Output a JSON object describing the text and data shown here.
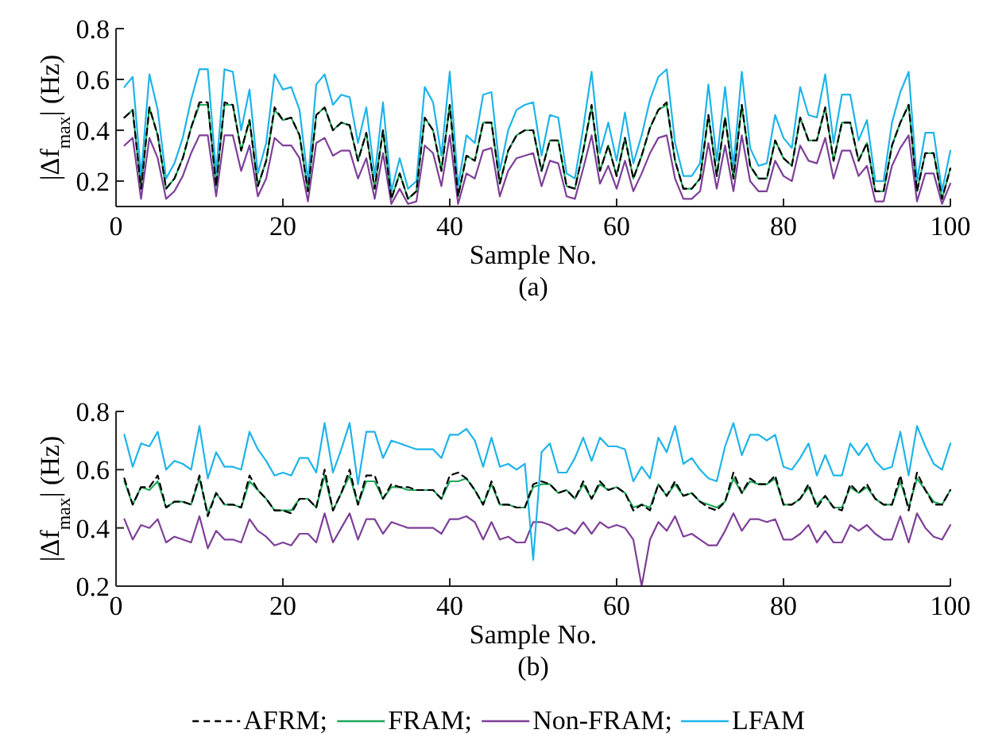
{
  "chart_data": [
    {
      "type": "line",
      "xlabel": "Sample No.",
      "ylabel": "|Δf$_{max}$| (Hz)",
      "annotations": [
        "(a)"
      ],
      "xlim": [
        0,
        100
      ],
      "xticks": [
        0,
        20,
        40,
        60,
        80,
        100
      ],
      "ylim": [
        0.1,
        0.8
      ],
      "yticks": [
        0.2,
        0.4,
        0.6,
        0.8
      ],
      "grid": false,
      "legend": false,
      "x": [
        1,
        2,
        3,
        4,
        5,
        6,
        7,
        8,
        9,
        10,
        11,
        12,
        13,
        14,
        15,
        16,
        17,
        18,
        19,
        20,
        21,
        22,
        23,
        24,
        25,
        26,
        27,
        28,
        29,
        30,
        31,
        32,
        33,
        34,
        35,
        36,
        37,
        38,
        39,
        40,
        41,
        42,
        43,
        44,
        45,
        46,
        47,
        48,
        49,
        50,
        51,
        52,
        53,
        54,
        55,
        56,
        57,
        58,
        59,
        60,
        61,
        62,
        63,
        64,
        65,
        66,
        67,
        68,
        69,
        70,
        71,
        72,
        73,
        74,
        75,
        76,
        77,
        78,
        79,
        80,
        81,
        82,
        83,
        84,
        85,
        86,
        87,
        88,
        89,
        90,
        91,
        92,
        93,
        94,
        95,
        96,
        97,
        98,
        99,
        100
      ],
      "series": [
        {
          "color": "#21a65a",
          "line_style": "solid",
          "values": [
            0.45,
            0.48,
            0.17,
            0.49,
            0.38,
            0.17,
            0.21,
            0.29,
            0.41,
            0.5,
            0.5,
            0.18,
            0.5,
            0.5,
            0.32,
            0.44,
            0.18,
            0.28,
            0.48,
            0.44,
            0.45,
            0.38,
            0.16,
            0.46,
            0.49,
            0.4,
            0.43,
            0.42,
            0.28,
            0.39,
            0.17,
            0.4,
            0.13,
            0.23,
            0.13,
            0.16,
            0.45,
            0.4,
            0.24,
            0.5,
            0.14,
            0.3,
            0.28,
            0.43,
            0.43,
            0.19,
            0.32,
            0.38,
            0.4,
            0.4,
            0.24,
            0.36,
            0.36,
            0.18,
            0.17,
            0.32,
            0.49,
            0.24,
            0.34,
            0.22,
            0.37,
            0.21,
            0.3,
            0.41,
            0.48,
            0.5,
            0.28,
            0.17,
            0.17,
            0.21,
            0.46,
            0.22,
            0.45,
            0.21,
            0.5,
            0.26,
            0.21,
            0.21,
            0.36,
            0.29,
            0.26,
            0.45,
            0.36,
            0.36,
            0.49,
            0.28,
            0.43,
            0.43,
            0.28,
            0.35,
            0.16,
            0.16,
            0.34,
            0.43,
            0.5,
            0.16,
            0.31,
            0.31,
            0.13,
            0.25
          ]
        },
        {
          "color": "#7e3f98",
          "line_style": "solid",
          "values": [
            0.34,
            0.37,
            0.13,
            0.37,
            0.29,
            0.13,
            0.16,
            0.22,
            0.31,
            0.38,
            0.38,
            0.14,
            0.38,
            0.38,
            0.24,
            0.34,
            0.14,
            0.21,
            0.37,
            0.34,
            0.34,
            0.29,
            0.12,
            0.35,
            0.37,
            0.3,
            0.32,
            0.32,
            0.21,
            0.29,
            0.13,
            0.31,
            0.11,
            0.17,
            0.11,
            0.12,
            0.34,
            0.31,
            0.18,
            0.38,
            0.11,
            0.23,
            0.21,
            0.32,
            0.33,
            0.14,
            0.24,
            0.29,
            0.3,
            0.31,
            0.18,
            0.28,
            0.27,
            0.14,
            0.13,
            0.25,
            0.38,
            0.19,
            0.26,
            0.17,
            0.28,
            0.16,
            0.23,
            0.31,
            0.37,
            0.38,
            0.21,
            0.13,
            0.13,
            0.16,
            0.35,
            0.17,
            0.34,
            0.16,
            0.38,
            0.2,
            0.16,
            0.16,
            0.28,
            0.22,
            0.2,
            0.34,
            0.28,
            0.27,
            0.37,
            0.21,
            0.32,
            0.32,
            0.22,
            0.26,
            0.12,
            0.12,
            0.26,
            0.33,
            0.38,
            0.12,
            0.23,
            0.23,
            0.11,
            0.19
          ]
        },
        {
          "color": "#1eb4ea",
          "line_style": "solid",
          "values": [
            0.57,
            0.61,
            0.22,
            0.62,
            0.48,
            0.21,
            0.27,
            0.37,
            0.52,
            0.64,
            0.64,
            0.23,
            0.64,
            0.63,
            0.4,
            0.56,
            0.23,
            0.35,
            0.62,
            0.56,
            0.57,
            0.48,
            0.2,
            0.58,
            0.62,
            0.5,
            0.54,
            0.53,
            0.35,
            0.49,
            0.22,
            0.51,
            0.16,
            0.29,
            0.17,
            0.2,
            0.57,
            0.51,
            0.3,
            0.63,
            0.18,
            0.38,
            0.35,
            0.54,
            0.55,
            0.24,
            0.4,
            0.48,
            0.5,
            0.51,
            0.3,
            0.46,
            0.45,
            0.23,
            0.21,
            0.41,
            0.63,
            0.31,
            0.43,
            0.28,
            0.47,
            0.27,
            0.38,
            0.52,
            0.61,
            0.64,
            0.35,
            0.22,
            0.22,
            0.27,
            0.58,
            0.28,
            0.57,
            0.26,
            0.63,
            0.33,
            0.26,
            0.27,
            0.46,
            0.37,
            0.33,
            0.57,
            0.46,
            0.45,
            0.62,
            0.35,
            0.54,
            0.54,
            0.36,
            0.44,
            0.2,
            0.2,
            0.43,
            0.55,
            0.63,
            0.2,
            0.39,
            0.39,
            0.16,
            0.32
          ]
        },
        {
          "color": "#000000",
          "line_style": "dashed",
          "values": [
            0.45,
            0.48,
            0.17,
            0.49,
            0.38,
            0.17,
            0.21,
            0.29,
            0.41,
            0.51,
            0.51,
            0.18,
            0.51,
            0.5,
            0.32,
            0.44,
            0.18,
            0.28,
            0.49,
            0.44,
            0.45,
            0.38,
            0.16,
            0.46,
            0.49,
            0.4,
            0.43,
            0.42,
            0.28,
            0.39,
            0.17,
            0.4,
            0.13,
            0.23,
            0.13,
            0.16,
            0.45,
            0.4,
            0.24,
            0.5,
            0.14,
            0.3,
            0.28,
            0.43,
            0.43,
            0.19,
            0.32,
            0.38,
            0.4,
            0.4,
            0.24,
            0.36,
            0.36,
            0.18,
            0.17,
            0.32,
            0.5,
            0.24,
            0.34,
            0.22,
            0.37,
            0.21,
            0.3,
            0.41,
            0.48,
            0.51,
            0.28,
            0.17,
            0.17,
            0.21,
            0.46,
            0.22,
            0.45,
            0.21,
            0.5,
            0.26,
            0.21,
            0.21,
            0.36,
            0.29,
            0.26,
            0.45,
            0.36,
            0.36,
            0.49,
            0.28,
            0.43,
            0.43,
            0.28,
            0.35,
            0.16,
            0.16,
            0.34,
            0.43,
            0.5,
            0.16,
            0.31,
            0.31,
            0.13,
            0.25
          ]
        }
      ]
    },
    {
      "type": "line",
      "xlabel": "Sample No.",
      "ylabel": "|Δf$_{max}$| (Hz)",
      "annotations": [
        "(b)"
      ],
      "xlim": [
        0,
        100
      ],
      "xticks": [
        0,
        20,
        40,
        60,
        80,
        100
      ],
      "ylim": [
        0.2,
        0.8
      ],
      "yticks": [
        0.2,
        0.4,
        0.6,
        0.8
      ],
      "grid": false,
      "legend": "bottom",
      "x": [
        1,
        2,
        3,
        4,
        5,
        6,
        7,
        8,
        9,
        10,
        11,
        12,
        13,
        14,
        15,
        16,
        17,
        18,
        19,
        20,
        21,
        22,
        23,
        24,
        25,
        26,
        27,
        28,
        29,
        30,
        31,
        32,
        33,
        34,
        35,
        36,
        37,
        38,
        39,
        40,
        41,
        42,
        43,
        44,
        45,
        46,
        47,
        48,
        49,
        50,
        51,
        52,
        53,
        54,
        55,
        56,
        57,
        58,
        59,
        60,
        61,
        62,
        63,
        64,
        65,
        66,
        67,
        68,
        69,
        70,
        71,
        72,
        73,
        74,
        75,
        76,
        77,
        78,
        79,
        80,
        81,
        82,
        83,
        84,
        85,
        86,
        87,
        88,
        89,
        90,
        91,
        92,
        93,
        94,
        95,
        96,
        97,
        98,
        99,
        100
      ],
      "series": [
        {
          "name": "FRAM;",
          "color": "#21a65a",
          "line_style": "solid",
          "values": [
            0.56,
            0.48,
            0.54,
            0.53,
            0.56,
            0.47,
            0.49,
            0.49,
            0.48,
            0.57,
            0.45,
            0.52,
            0.48,
            0.48,
            0.47,
            0.56,
            0.53,
            0.5,
            0.46,
            0.46,
            0.46,
            0.5,
            0.5,
            0.47,
            0.58,
            0.46,
            0.52,
            0.58,
            0.48,
            0.56,
            0.56,
            0.5,
            0.54,
            0.54,
            0.53,
            0.53,
            0.53,
            0.53,
            0.5,
            0.56,
            0.56,
            0.57,
            0.53,
            0.48,
            0.55,
            0.48,
            0.48,
            0.47,
            0.47,
            0.54,
            0.55,
            0.55,
            0.52,
            0.53,
            0.5,
            0.55,
            0.5,
            0.55,
            0.53,
            0.54,
            0.52,
            0.47,
            0.48,
            0.47,
            0.55,
            0.51,
            0.55,
            0.51,
            0.52,
            0.49,
            0.48,
            0.47,
            0.49,
            0.57,
            0.52,
            0.56,
            0.55,
            0.55,
            0.57,
            0.48,
            0.48,
            0.5,
            0.54,
            0.48,
            0.51,
            0.47,
            0.47,
            0.54,
            0.52,
            0.54,
            0.5,
            0.48,
            0.48,
            0.56,
            0.47,
            0.57,
            0.53,
            0.49,
            0.48,
            0.53
          ]
        },
        {
          "name": "Non-FRAM;",
          "color": "#7e3f98",
          "line_style": "solid",
          "values": [
            0.43,
            0.36,
            0.41,
            0.4,
            0.43,
            0.35,
            0.37,
            0.36,
            0.35,
            0.44,
            0.33,
            0.39,
            0.36,
            0.36,
            0.35,
            0.43,
            0.39,
            0.37,
            0.34,
            0.35,
            0.34,
            0.38,
            0.38,
            0.35,
            0.45,
            0.35,
            0.4,
            0.45,
            0.36,
            0.43,
            0.43,
            0.38,
            0.42,
            0.41,
            0.4,
            0.4,
            0.4,
            0.4,
            0.38,
            0.43,
            0.43,
            0.44,
            0.42,
            0.36,
            0.42,
            0.36,
            0.37,
            0.35,
            0.35,
            0.42,
            0.42,
            0.41,
            0.39,
            0.4,
            0.38,
            0.42,
            0.38,
            0.42,
            0.4,
            0.41,
            0.4,
            0.36,
            0.2,
            0.36,
            0.42,
            0.39,
            0.44,
            0.37,
            0.38,
            0.36,
            0.34,
            0.34,
            0.39,
            0.45,
            0.39,
            0.43,
            0.43,
            0.42,
            0.43,
            0.36,
            0.36,
            0.38,
            0.41,
            0.35,
            0.39,
            0.35,
            0.35,
            0.41,
            0.39,
            0.41,
            0.38,
            0.36,
            0.36,
            0.44,
            0.35,
            0.45,
            0.4,
            0.37,
            0.36,
            0.41
          ]
        },
        {
          "name": "LFAM",
          "color": "#1eb4ea",
          "line_style": "solid",
          "values": [
            0.72,
            0.61,
            0.69,
            0.68,
            0.73,
            0.6,
            0.63,
            0.62,
            0.6,
            0.75,
            0.57,
            0.66,
            0.61,
            0.61,
            0.6,
            0.73,
            0.67,
            0.63,
            0.58,
            0.59,
            0.58,
            0.64,
            0.64,
            0.59,
            0.76,
            0.59,
            0.67,
            0.76,
            0.55,
            0.73,
            0.73,
            0.64,
            0.7,
            0.69,
            0.68,
            0.67,
            0.67,
            0.67,
            0.64,
            0.72,
            0.72,
            0.74,
            0.7,
            0.61,
            0.71,
            0.61,
            0.62,
            0.6,
            0.62,
            0.29,
            0.66,
            0.69,
            0.59,
            0.59,
            0.64,
            0.71,
            0.63,
            0.71,
            0.68,
            0.68,
            0.67,
            0.56,
            0.61,
            0.57,
            0.71,
            0.66,
            0.75,
            0.62,
            0.64,
            0.6,
            0.57,
            0.56,
            0.68,
            0.76,
            0.65,
            0.72,
            0.72,
            0.7,
            0.72,
            0.61,
            0.6,
            0.64,
            0.69,
            0.58,
            0.65,
            0.58,
            0.58,
            0.69,
            0.65,
            0.69,
            0.63,
            0.6,
            0.61,
            0.73,
            0.58,
            0.75,
            0.68,
            0.62,
            0.6,
            0.69
          ]
        },
        {
          "name": "AFRM;",
          "color": "#000000",
          "line_style": "dashed",
          "values": [
            0.57,
            0.48,
            0.54,
            0.54,
            0.58,
            0.47,
            0.49,
            0.49,
            0.48,
            0.58,
            0.44,
            0.52,
            0.48,
            0.48,
            0.47,
            0.58,
            0.53,
            0.5,
            0.46,
            0.46,
            0.45,
            0.5,
            0.5,
            0.47,
            0.6,
            0.46,
            0.52,
            0.6,
            0.48,
            0.58,
            0.58,
            0.5,
            0.55,
            0.54,
            0.54,
            0.53,
            0.53,
            0.53,
            0.5,
            0.58,
            0.59,
            0.57,
            0.53,
            0.48,
            0.56,
            0.48,
            0.48,
            0.47,
            0.47,
            0.55,
            0.56,
            0.55,
            0.52,
            0.53,
            0.5,
            0.56,
            0.5,
            0.56,
            0.53,
            0.54,
            0.52,
            0.46,
            0.48,
            0.46,
            0.55,
            0.51,
            0.56,
            0.51,
            0.52,
            0.49,
            0.47,
            0.46,
            0.49,
            0.59,
            0.52,
            0.57,
            0.55,
            0.55,
            0.58,
            0.48,
            0.48,
            0.5,
            0.55,
            0.47,
            0.51,
            0.47,
            0.46,
            0.55,
            0.52,
            0.55,
            0.5,
            0.48,
            0.48,
            0.58,
            0.46,
            0.59,
            0.53,
            0.48,
            0.48,
            0.53
          ]
        }
      ]
    }
  ]
}
